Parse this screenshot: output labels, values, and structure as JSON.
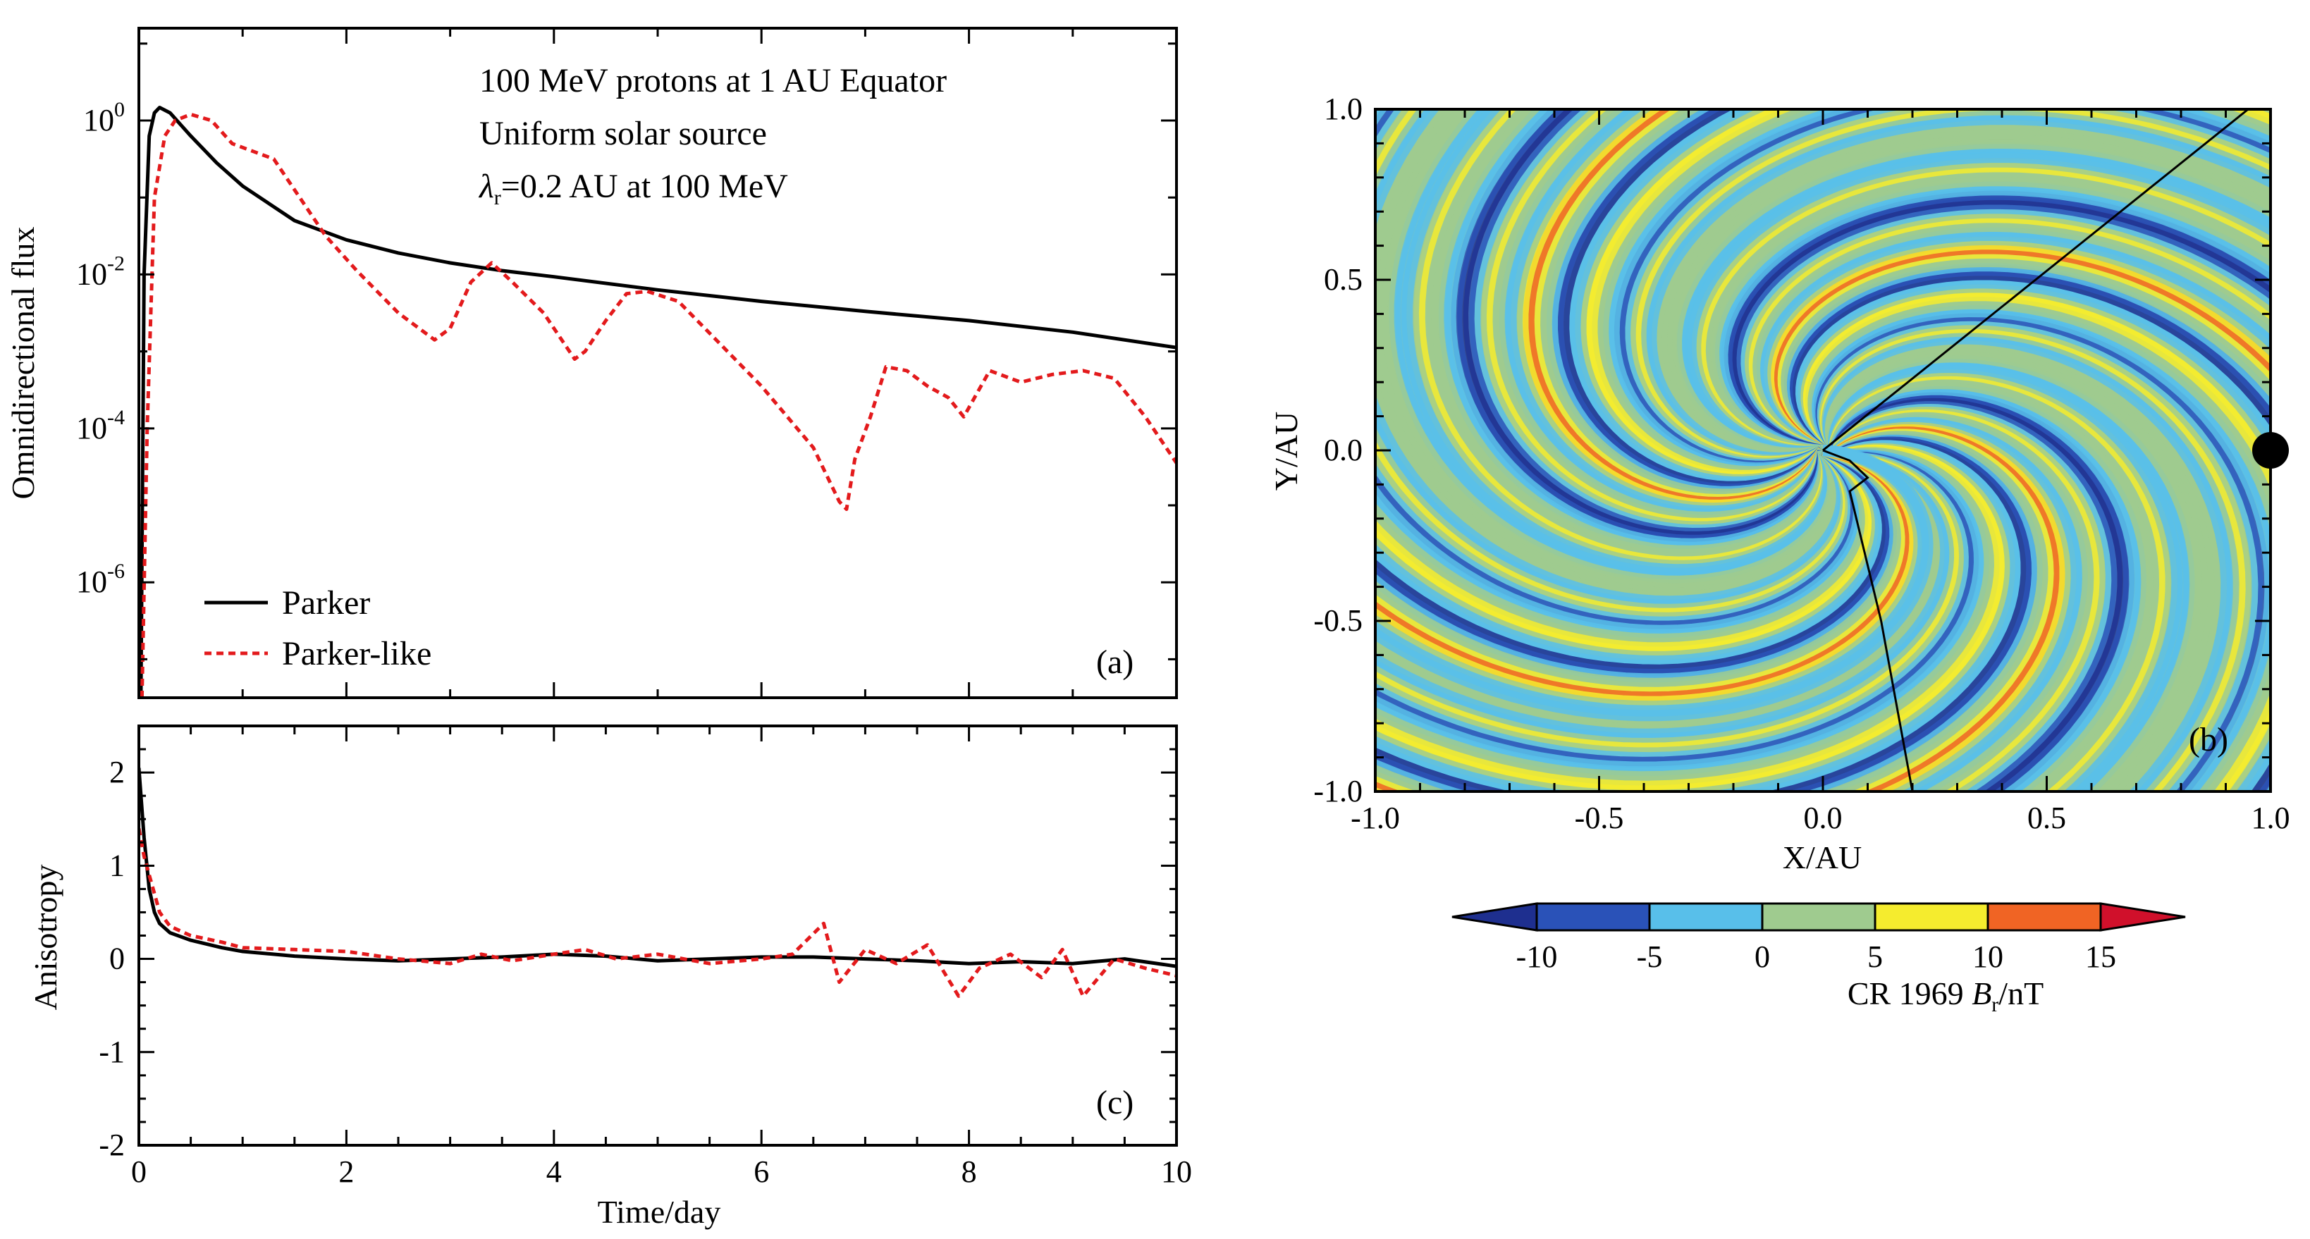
{
  "chart_data": [
    {
      "id": "a",
      "type": "line",
      "panel_label": "(a)",
      "annotation_lines": [
        "100 MeV protons at 1 AU Equator",
        "Uniform solar source",
        "λr=0.2 AU at 100 MeV"
      ],
      "xlabel": "",
      "ylabel": "Omnidirectional flux",
      "yscale": "log",
      "xlim": [
        0,
        10
      ],
      "ylim_log10": [
        -7.5,
        1.2
      ],
      "ytick_exponents": [
        0,
        -2,
        -4,
        -6
      ],
      "ytick_base": "10",
      "legend": "lower-left",
      "series": [
        {
          "name": "Parker",
          "color": "#000000",
          "dash": "solid",
          "x": [
            0.02,
            0.05,
            0.1,
            0.15,
            0.2,
            0.3,
            0.5,
            0.75,
            1.0,
            1.5,
            2.0,
            2.5,
            3.0,
            3.5,
            4.0,
            5.0,
            6.0,
            7.0,
            8.0,
            9.0,
            10.0
          ],
          "log10_y": [
            -7.5,
            -2.0,
            -0.2,
            0.1,
            0.17,
            0.1,
            -0.2,
            -0.55,
            -0.85,
            -1.3,
            -1.55,
            -1.72,
            -1.85,
            -1.95,
            -2.03,
            -2.2,
            -2.35,
            -2.48,
            -2.6,
            -2.75,
            -2.95
          ]
        },
        {
          "name": "Parker-like",
          "color": "#e31a1c",
          "dash": "dotted",
          "x": [
            0.03,
            0.08,
            0.15,
            0.25,
            0.35,
            0.5,
            0.7,
            0.9,
            1.1,
            1.3,
            1.5,
            1.8,
            2.1,
            2.5,
            2.85,
            3.0,
            3.2,
            3.4,
            3.6,
            3.9,
            4.2,
            4.3,
            4.5,
            4.7,
            4.9,
            5.2,
            5.6,
            6.0,
            6.5,
            6.75,
            6.82,
            6.9,
            7.05,
            7.2,
            7.4,
            7.6,
            7.8,
            7.95,
            8.2,
            8.5,
            8.8,
            9.1,
            9.4,
            9.7,
            10.0
          ],
          "log10_y": [
            -7.5,
            -4.0,
            -1.0,
            -0.2,
            0.0,
            0.08,
            0.0,
            -0.3,
            -0.4,
            -0.5,
            -0.9,
            -1.5,
            -1.95,
            -2.5,
            -2.85,
            -2.7,
            -2.1,
            -1.85,
            -2.1,
            -2.5,
            -3.1,
            -3.0,
            -2.6,
            -2.25,
            -2.22,
            -2.35,
            -2.9,
            -3.45,
            -4.25,
            -4.95,
            -5.05,
            -4.4,
            -3.85,
            -3.2,
            -3.25,
            -3.45,
            -3.6,
            -3.85,
            -3.25,
            -3.4,
            -3.3,
            -3.25,
            -3.35,
            -3.85,
            -4.45
          ]
        }
      ]
    },
    {
      "id": "c",
      "type": "line",
      "panel_label": "(c)",
      "xlabel": "Time/day",
      "ylabel": "Anisotropy",
      "xlim": [
        0,
        10
      ],
      "ylim": [
        -2,
        2.5
      ],
      "xticks": [
        "0",
        "2",
        "4",
        "6",
        "8",
        "10"
      ],
      "yticks": [
        "2",
        "1",
        "0",
        "-1",
        "-2"
      ],
      "series": [
        {
          "name": "Parker",
          "color": "#000000",
          "dash": "solid",
          "x": [
            0.0,
            0.05,
            0.1,
            0.15,
            0.2,
            0.3,
            0.5,
            0.8,
            1.0,
            1.5,
            2.0,
            2.5,
            3.0,
            3.5,
            4.0,
            4.5,
            5.0,
            5.5,
            6.0,
            6.5,
            7.0,
            7.5,
            8.0,
            8.5,
            9.0,
            9.5,
            10.0
          ],
          "y": [
            2.05,
            1.3,
            0.75,
            0.5,
            0.38,
            0.28,
            0.2,
            0.12,
            0.08,
            0.03,
            0.0,
            -0.02,
            0.0,
            0.02,
            0.05,
            0.03,
            -0.02,
            0.0,
            0.02,
            0.02,
            0.0,
            -0.02,
            -0.05,
            -0.03,
            -0.05,
            0.0,
            -0.08
          ]
        },
        {
          "name": "Parker-like",
          "color": "#e31a1c",
          "dash": "dotted",
          "x": [
            0.0,
            0.05,
            0.1,
            0.15,
            0.2,
            0.3,
            0.5,
            0.8,
            1.0,
            1.5,
            2.0,
            2.5,
            3.0,
            3.3,
            3.6,
            4.0,
            4.3,
            4.6,
            5.0,
            5.5,
            6.0,
            6.3,
            6.6,
            6.75,
            7.0,
            7.3,
            7.6,
            7.9,
            8.1,
            8.4,
            8.7,
            8.9,
            9.1,
            9.4,
            9.7,
            10.0
          ],
          "y": [
            1.4,
            1.1,
            0.9,
            0.7,
            0.5,
            0.35,
            0.25,
            0.18,
            0.12,
            0.1,
            0.08,
            0.0,
            -0.05,
            0.05,
            -0.02,
            0.05,
            0.1,
            0.0,
            0.05,
            -0.05,
            0.0,
            0.05,
            0.38,
            -0.25,
            0.1,
            -0.05,
            0.15,
            -0.4,
            -0.1,
            0.05,
            -0.2,
            0.1,
            -0.4,
            0.0,
            -0.1,
            -0.18
          ]
        }
      ]
    },
    {
      "id": "b",
      "type": "heatmap",
      "panel_label": "(b)",
      "xlabel": "X/AU",
      "ylabel": "Y/AU",
      "xlim": [
        -1.0,
        1.0
      ],
      "ylim": [
        -1.0,
        1.0
      ],
      "xticks": [
        "-1.0",
        "-0.5",
        "0.0",
        "0.5",
        "1.0"
      ],
      "yticks": [
        "1.0",
        "0.5",
        "0.0",
        "-0.5",
        "-1.0"
      ],
      "colorbar": {
        "title_prefix": "CR 1969 ",
        "title_var": "B",
        "title_sub": "r",
        "title_unit": "/nT",
        "ticks": [
          "-10",
          "-5",
          "0",
          "5",
          "10",
          "15"
        ],
        "bins": [
          -15,
          -10,
          -5,
          0,
          5,
          10,
          15,
          20
        ],
        "colors": [
          "#1e2f8f",
          "#2a52b8",
          "#58bfea",
          "#9fcb8f",
          "#f5ec2e",
          "#f06424",
          "#d0102b"
        ]
      },
      "earth_marker": {
        "x": 1.0,
        "y": 0.0
      },
      "field_lines": [
        {
          "x": [
            0.0,
            0.95
          ],
          "y": [
            0.0,
            1.0
          ]
        },
        {
          "x": [
            0.0,
            0.06,
            0.1,
            0.06,
            0.13,
            0.2
          ],
          "y": [
            0.0,
            -0.03,
            -0.08,
            -0.12,
            -0.5,
            -1.0
          ]
        }
      ]
    }
  ],
  "legend_a": [
    {
      "label": "Parker",
      "color": "#000000",
      "dash": "solid"
    },
    {
      "label": "Parker-like",
      "color": "#e31a1c",
      "dash": "dotted"
    }
  ]
}
